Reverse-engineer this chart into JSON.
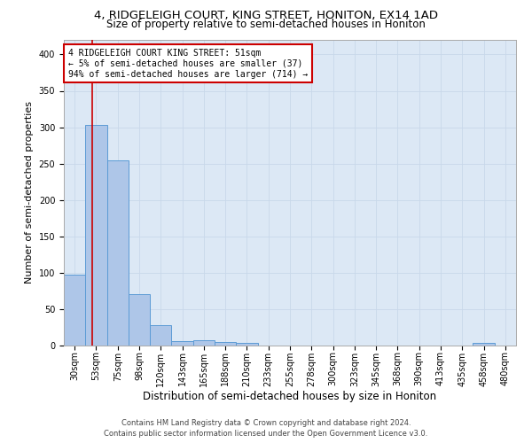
{
  "title": "4, RIDGELEIGH COURT, KING STREET, HONITON, EX14 1AD",
  "subtitle": "Size of property relative to semi-detached houses in Honiton",
  "xlabel": "Distribution of semi-detached houses by size in Honiton",
  "ylabel": "Number of semi-detached properties",
  "categories": [
    "30sqm",
    "53sqm",
    "75sqm",
    "98sqm",
    "120sqm",
    "143sqm",
    "165sqm",
    "188sqm",
    "210sqm",
    "233sqm",
    "255sqm",
    "278sqm",
    "300sqm",
    "323sqm",
    "345sqm",
    "368sqm",
    "390sqm",
    "413sqm",
    "435sqm",
    "458sqm",
    "480sqm"
  ],
  "values": [
    97,
    303,
    255,
    71,
    28,
    6,
    7,
    5,
    4,
    0,
    0,
    0,
    0,
    0,
    0,
    0,
    0,
    0,
    0,
    4,
    0
  ],
  "bar_color": "#aec6e8",
  "bar_edge_color": "#5b9bd5",
  "annotation_box_text": "4 RIDGELEIGH COURT KING STREET: 51sqm\n← 5% of semi-detached houses are smaller (37)\n94% of semi-detached houses are larger (714) →",
  "annotation_box_color": "#ffffff",
  "annotation_box_edge_color": "#cc0000",
  "vline_color": "#cc0000",
  "vline_x": 0.83,
  "ylim": [
    0,
    420
  ],
  "yticks": [
    0,
    50,
    100,
    150,
    200,
    250,
    300,
    350,
    400
  ],
  "grid_color": "#c8d8ea",
  "background_color": "#dce8f5",
  "footer_line1": "Contains HM Land Registry data © Crown copyright and database right 2024.",
  "footer_line2": "Contains public sector information licensed under the Open Government Licence v3.0.",
  "title_fontsize": 9.5,
  "subtitle_fontsize": 8.5,
  "ylabel_fontsize": 8,
  "xlabel_fontsize": 8.5,
  "tick_fontsize": 7,
  "annotation_fontsize": 7,
  "footer_fontsize": 6
}
